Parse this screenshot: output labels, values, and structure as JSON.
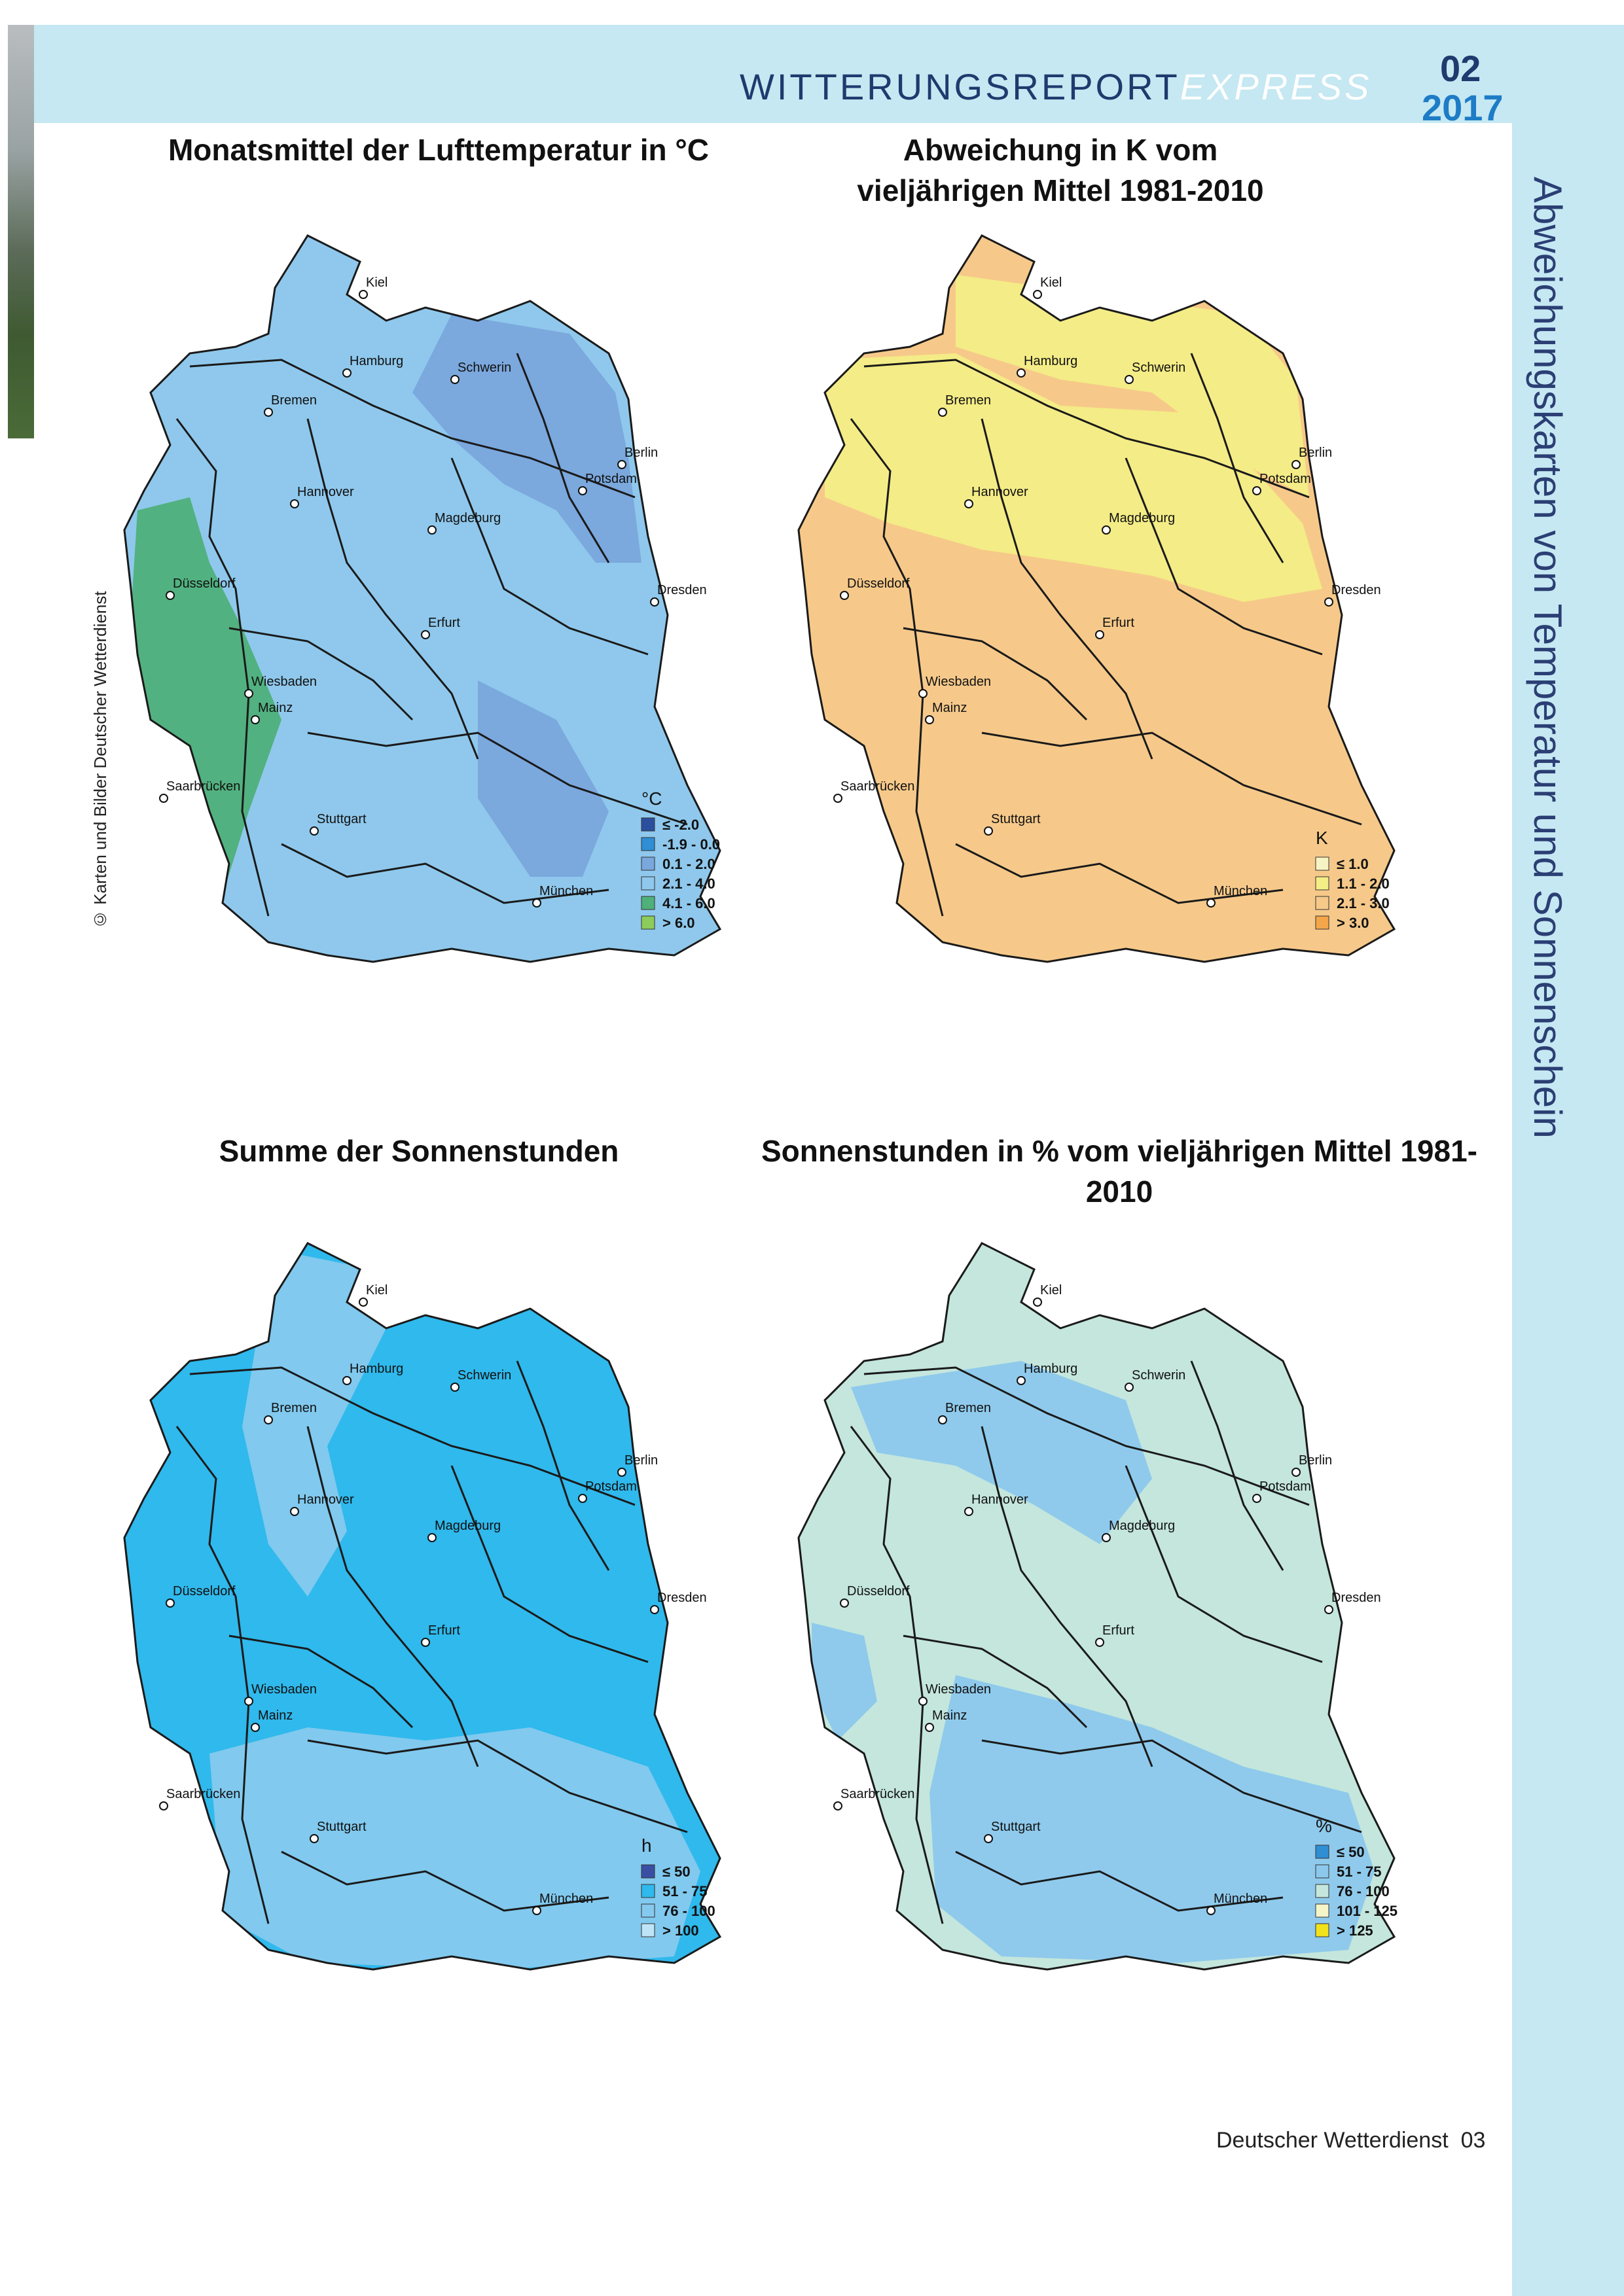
{
  "header": {
    "report_title": "WITTERUNGSREPORT",
    "report_title_suffix": "EXPRESS",
    "issue_number": "02",
    "issue_year": "2017"
  },
  "side_title": "Abweichungskarten von Temperatur und Sonnenschein",
  "copyright": "© Karten und Bilder Deutscher Wetterdienst",
  "cities": [
    "Kiel",
    "Hamburg",
    "Schwerin",
    "Bremen",
    "Berlin",
    "Potsdam",
    "Hannover",
    "Magdeburg",
    "Düsseldorf",
    "Erfurt",
    "Dresden",
    "Wiesbaden",
    "Mainz",
    "Saarbrücken",
    "Stuttgart",
    "München"
  ],
  "maps": [
    {
      "title": "Monatsmittel der Lufttemperatur in °C",
      "legend_unit": "°C",
      "legend": [
        {
          "label": "≤ -2.0",
          "color": "#2b4f9e"
        },
        {
          "label": "-1.9 - 0.0",
          "color": "#2f8ed4"
        },
        {
          "label": "0.1 - 2.0",
          "color": "#7aa7dc"
        },
        {
          "label": "2.1 - 4.0",
          "color": "#8fc8ec"
        },
        {
          "label": "4.1 - 6.0",
          "color": "#4fb07a"
        },
        {
          "label": "> 6.0",
          "color": "#8ccc5a"
        }
      ],
      "base_color": "#8fc8ec",
      "accent_colors": [
        "#7aa7dc",
        "#4fb07a"
      ]
    },
    {
      "title": "Abweichung in K vom vieljährigen Mittel 1981-2010",
      "legend_unit": "K",
      "legend": [
        {
          "label": "≤ 1.0",
          "color": "#f7f4c4"
        },
        {
          "label": "1.1 - 2.0",
          "color": "#f3ee86"
        },
        {
          "label": "2.1 - 3.0",
          "color": "#f6c98a"
        },
        {
          "label": "> 3.0",
          "color": "#f4a64a"
        }
      ],
      "base_color": "#f6c98a",
      "accent_colors": [
        "#f3ee86",
        "#f7f4c4"
      ]
    },
    {
      "title": "Summe der Sonnenstunden",
      "legend_unit": "h",
      "legend": [
        {
          "label": "≤ 50",
          "color": "#3a4fa3"
        },
        {
          "label": "51 - 75",
          "color": "#2fb9ec"
        },
        {
          "label": "76 - 100",
          "color": "#86c9ee"
        },
        {
          "label": "> 100",
          "color": "#bfe4f6"
        }
      ],
      "base_color": "#2fb9ec",
      "accent_colors": [
        "#86c9ee",
        "#3a4fa3"
      ]
    },
    {
      "title": "Sonnenstunden in % vom vieljährigen Mittel 1981-2010",
      "legend_unit": "%",
      "legend": [
        {
          "label": "≤ 50",
          "color": "#2f8ed4"
        },
        {
          "label": "51 - 75",
          "color": "#8cc8ec"
        },
        {
          "label": "76 - 100",
          "color": "#c4e6dc"
        },
        {
          "label": "101 - 125",
          "color": "#f6f5c8"
        },
        {
          "label": "> 125",
          "color": "#f2e21c"
        }
      ],
      "base_color": "#c4e6dc",
      "accent_colors": [
        "#8cc8ec",
        "#f6f5c8"
      ]
    }
  ],
  "footer": {
    "publisher": "Deutscher Wetterdienst",
    "page": "03"
  }
}
